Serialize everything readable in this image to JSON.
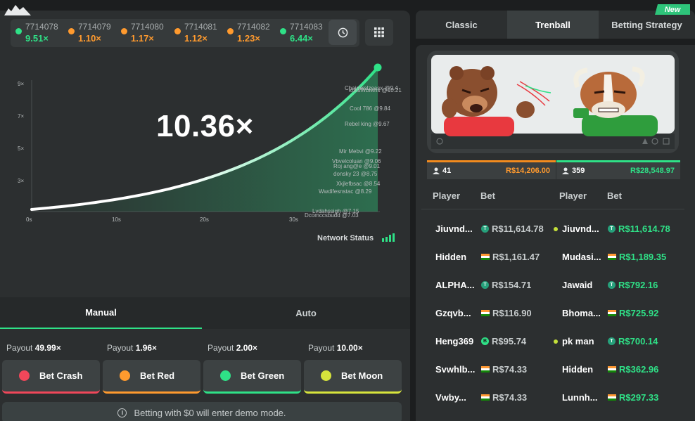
{
  "history": [
    {
      "id": "7714078",
      "multiplier": "9.51×",
      "color": "#2fe187"
    },
    {
      "id": "7714079",
      "multiplier": "1.10×",
      "color": "#ff9a2e"
    },
    {
      "id": "7714080",
      "multiplier": "1.17×",
      "color": "#ff9a2e"
    },
    {
      "id": "7714081",
      "multiplier": "1.12×",
      "color": "#ff9a2e"
    },
    {
      "id": "7714082",
      "multiplier": "1.23×",
      "color": "#ff9a2e"
    },
    {
      "id": "7714083",
      "multiplier": "6.44×",
      "color": "#2fe187"
    }
  ],
  "graph": {
    "current_multiplier": "10.36×",
    "y_ticks": [
      "9×",
      "7×",
      "5×",
      "3×"
    ],
    "x_ticks": [
      "0s",
      "10s",
      "20s",
      "30s"
    ],
    "cashouts": [
      {
        "name": "Chaimkolzeasx @9.4",
        "mult": 9.4
      },
      {
        "name": "kGtsWbiwhs @10.21",
        "mult": 10.21
      },
      {
        "name": "Cool 786 @9.84",
        "mult": 9.84
      },
      {
        "name": "Rebel king @9.67",
        "mult": 9.67
      },
      {
        "name": "Mir Mebvi @9.22",
        "mult": 9.22
      },
      {
        "name": "Vbvelcoluan @9.06",
        "mult": 9.06
      },
      {
        "name": "Roj ang@e @9.01",
        "mult": 9.01
      },
      {
        "name": "donsky 23 @8.75",
        "mult": 8.75
      },
      {
        "name": "Xkjlefbsac @8.54",
        "mult": 8.54
      },
      {
        "name": "Wwdifesnstac @8.29",
        "mult": 8.29
      },
      {
        "name": "Lvdahssigh @7.15",
        "mult": 7.15
      },
      {
        "name": "Dcomccsbudd @7.03",
        "mult": 7.03
      }
    ],
    "network_status": "Network Status"
  },
  "modes": {
    "manual": "Manual",
    "auto": "Auto"
  },
  "bets": [
    {
      "payout_label": "Payout",
      "payout_value": "49.99×",
      "label": "Bet Crash",
      "color": "#f0475a"
    },
    {
      "payout_label": "Payout",
      "payout_value": "1.96×",
      "label": "Bet Red",
      "color": "#ff9a2e"
    },
    {
      "payout_label": "Payout",
      "payout_value": "2.00×",
      "label": "Bet Green",
      "color": "#2fe187"
    },
    {
      "payout_label": "Payout",
      "payout_value": "10.00×",
      "label": "Bet Moon",
      "color": "#d7e43c"
    }
  ],
  "demo_notice": "Betting with $0 will enter demo mode.",
  "tabs": {
    "classic": "Classic",
    "trenball": "Trenball",
    "strategy": "Betting Strategy",
    "new_badge": "New"
  },
  "teams": {
    "bear": {
      "count": "41",
      "amount": "R$14,206.00"
    },
    "bull": {
      "count": "359",
      "amount": "R$28,548.97"
    }
  },
  "table_headers": {
    "player": "Player",
    "bet": "Bet"
  },
  "left_players": [
    {
      "name": "Jiuvnd...",
      "bet": "R$11,614.78",
      "currency": "usdt"
    },
    {
      "name": "Hidden",
      "bet": "R$1,161.47",
      "currency": "inr"
    },
    {
      "name": "ALPHA...",
      "bet": "R$154.71",
      "currency": "usdt"
    },
    {
      "name": "Gzqvb...",
      "bet": "R$116.90",
      "currency": "inr"
    },
    {
      "name": "Heng369",
      "bet": "R$95.74",
      "currency": "other"
    },
    {
      "name": "Svwhlb...",
      "bet": "R$74.33",
      "currency": "inr"
    },
    {
      "name": "Vwby...",
      "bet": "R$74.33",
      "currency": "inr"
    }
  ],
  "right_players": [
    {
      "name": "Jiuvnd...",
      "bet": "R$11,614.78",
      "currency": "usdt"
    },
    {
      "name": "Mudasi...",
      "bet": "R$1,189.35",
      "currency": "inr"
    },
    {
      "name": "Jawaid",
      "bet": "R$792.16",
      "currency": "usdt"
    },
    {
      "name": "Bhoma...",
      "bet": "R$725.92",
      "currency": "inr"
    },
    {
      "name": "pk man",
      "bet": "R$700.14",
      "currency": "usdt"
    },
    {
      "name": "Hidden",
      "bet": "R$362.96",
      "currency": "inr"
    },
    {
      "name": "Lunnh...",
      "bet": "R$297.33",
      "currency": "inr"
    }
  ]
}
